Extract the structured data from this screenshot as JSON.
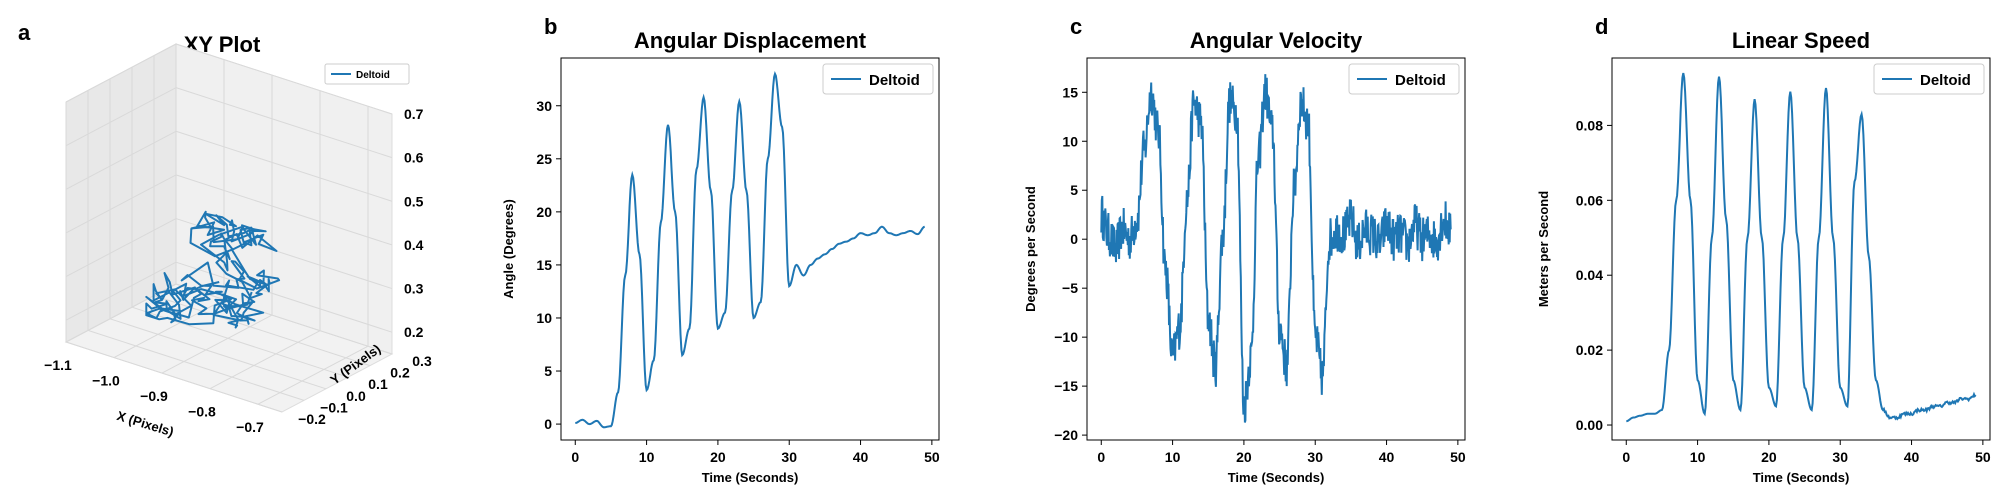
{
  "colors": {
    "series": "#1f77b4",
    "pane": "#f0f0f0",
    "grid": "#d9d9d9"
  },
  "chart_data": [
    {
      "panel_label": "a",
      "type": "line",
      "projection": "3d",
      "title": "XY Plot",
      "xlabel": "X (Pixels)",
      "ylabel": "Y (Pixels)",
      "zlabel": "",
      "xlim": [
        -1.1,
        -0.65
      ],
      "ylim": [
        -0.2,
        0.3
      ],
      "zlim": [
        0.15,
        0.7
      ],
      "x_ticks": [
        "−1.1",
        "−1.0",
        "−0.9",
        "−0.8",
        "−0.7"
      ],
      "y_ticks": [
        "−0.2",
        "−0.1",
        "0.0",
        "0.1",
        "0.2",
        "0.3"
      ],
      "z_ticks": [
        "0.2",
        "0.3",
        "0.4",
        "0.5",
        "0.6",
        "0.7"
      ],
      "legend": "upper right",
      "series": [
        {
          "name": "Deltoid",
          "x_range": [
            -1.0,
            -0.8
          ],
          "y_range": [
            -0.05,
            0.15
          ],
          "z_range": [
            0.28,
            0.42
          ],
          "note_points": 220
        }
      ]
    },
    {
      "panel_label": "b",
      "type": "line",
      "title": "Angular Displacement",
      "xlabel": "Time (Seconds)",
      "ylabel": "Angle (Degrees)",
      "xlim": [
        -2,
        51
      ],
      "ylim": [
        -1.5,
        34.5
      ],
      "x_ticks": [
        0,
        10,
        20,
        30,
        40,
        50
      ],
      "y_ticks": [
        0,
        5,
        10,
        15,
        20,
        25,
        30
      ],
      "legend": "upper right",
      "series": [
        {
          "name": "Deltoid",
          "x": [
            0,
            1,
            2,
            3,
            4,
            5,
            6,
            7,
            8,
            9,
            10,
            11,
            12,
            13,
            14,
            15,
            16,
            17,
            18,
            19,
            20,
            21,
            22,
            23,
            24,
            25,
            26,
            27,
            28,
            29,
            30,
            31,
            32,
            33,
            34,
            35,
            36,
            37,
            38,
            39,
            40,
            41,
            42,
            43,
            44,
            45,
            46,
            47,
            48,
            49
          ],
          "y": [
            0.1,
            0.4,
            0.0,
            0.3,
            -0.3,
            -0.2,
            3.0,
            14.0,
            23.5,
            16.0,
            3.2,
            6.0,
            19.0,
            28.2,
            20.0,
            6.5,
            9.0,
            24.0,
            30.8,
            22.0,
            9.0,
            10.5,
            22.0,
            30.4,
            22.0,
            10.0,
            11.5,
            25.0,
            33.0,
            28.0,
            13.0,
            15.0,
            14.0,
            15.0,
            15.6,
            16.0,
            16.5,
            17.0,
            17.2,
            17.5,
            18.0,
            17.8,
            18.0,
            18.6,
            18.0,
            17.8,
            18.0,
            18.2,
            17.9,
            18.6
          ]
        }
      ]
    },
    {
      "panel_label": "c",
      "type": "line",
      "title": "Angular Velocity",
      "xlabel": "Time (Seconds)",
      "ylabel": "Degrees per Second",
      "xlim": [
        -2,
        51
      ],
      "ylim": [
        -20.5,
        18.5
      ],
      "x_ticks": [
        0,
        10,
        20,
        30,
        40,
        50
      ],
      "y_ticks": [
        -20,
        -15,
        -10,
        -5,
        0,
        5,
        10,
        15
      ],
      "legend": "upper right",
      "series": [
        {
          "name": "Deltoid",
          "x": [
            0,
            1,
            2,
            3,
            4,
            5,
            6,
            7,
            8,
            9,
            10,
            11,
            12,
            13,
            14,
            15,
            16,
            17,
            18,
            19,
            20,
            21,
            22,
            23,
            24,
            25,
            26,
            27,
            28,
            29,
            30,
            31,
            32,
            33,
            34,
            35,
            36,
            37,
            38,
            39,
            40,
            41,
            42,
            43,
            44,
            45,
            46,
            47,
            48,
            49
          ],
          "y": [
            2.5,
            0.5,
            -1.0,
            1.0,
            0.0,
            2.0,
            9.0,
            15.0,
            11.0,
            -3.0,
            -12.0,
            -9.0,
            4.0,
            14.0,
            12.0,
            -8.0,
            -13.0,
            0.0,
            14.0,
            13.0,
            -17.0,
            -12.0,
            8.0,
            15.0,
            11.0,
            -9.0,
            -13.0,
            5.0,
            14.0,
            12.0,
            -10.0,
            -14.0,
            0.0,
            1.0,
            0.5,
            2.0,
            -0.5,
            1.0,
            0.5,
            -0.5,
            1.5,
            0.0,
            0.5,
            -0.5,
            1.5,
            0.0,
            0.5,
            -0.2,
            2.0,
            1.0
          ]
        }
      ]
    },
    {
      "panel_label": "d",
      "type": "line",
      "title": "Linear Speed",
      "xlabel": "Time (Seconds)",
      "ylabel": "Meters per Second",
      "xlim": [
        -2,
        51
      ],
      "ylim": [
        -0.004,
        0.098
      ],
      "x_ticks": [
        0,
        10,
        20,
        30,
        40,
        50
      ],
      "y_ticks": [
        "0.00",
        "0.02",
        "0.04",
        "0.06",
        "0.08"
      ],
      "legend": "upper right",
      "series": [
        {
          "name": "Deltoid",
          "x": [
            0,
            1,
            2,
            3,
            4,
            5,
            6,
            7,
            8,
            9,
            10,
            11,
            12,
            13,
            14,
            15,
            16,
            17,
            18,
            19,
            20,
            21,
            22,
            23,
            24,
            25,
            26,
            27,
            28,
            29,
            30,
            31,
            32,
            33,
            34,
            35,
            36,
            37,
            38,
            39,
            40,
            41,
            42,
            43,
            44,
            45,
            46,
            47,
            48,
            49
          ],
          "y": [
            0.001,
            0.002,
            0.0025,
            0.003,
            0.003,
            0.004,
            0.02,
            0.06,
            0.094,
            0.06,
            0.012,
            0.003,
            0.05,
            0.093,
            0.055,
            0.012,
            0.004,
            0.05,
            0.087,
            0.05,
            0.01,
            0.005,
            0.05,
            0.089,
            0.05,
            0.01,
            0.004,
            0.05,
            0.09,
            0.05,
            0.01,
            0.005,
            0.065,
            0.083,
            0.045,
            0.012,
            0.004,
            0.002,
            0.002,
            0.003,
            0.003,
            0.004,
            0.004,
            0.005,
            0.005,
            0.006,
            0.006,
            0.007,
            0.007,
            0.008
          ]
        }
      ]
    }
  ]
}
